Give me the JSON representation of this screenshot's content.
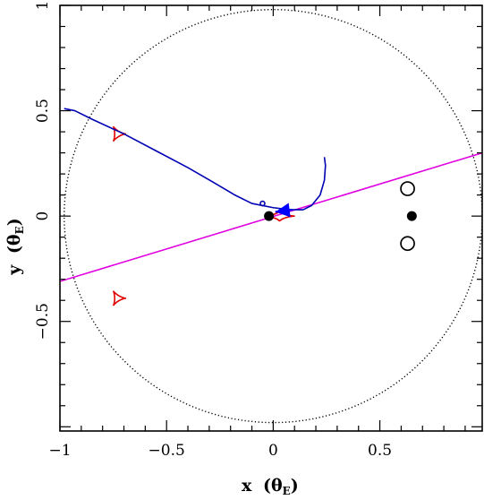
{
  "chart_data": {
    "type": "scatter",
    "title": "",
    "xlabel": "x",
    "ylabel": "y",
    "axis_unit_symbol": "θ",
    "axis_unit_subscript": "E",
    "xlim": [
      -1.0,
      0.98
    ],
    "ylim": [
      -1.02,
      1.0
    ],
    "x_ticks": [
      {
        "value": -1.0,
        "label": "−1"
      },
      {
        "value": -0.5,
        "label": "−0.5"
      },
      {
        "value": 0.0,
        "label": "0"
      },
      {
        "value": 0.5,
        "label": "0.5"
      }
    ],
    "y_ticks": [
      {
        "value": 1.0,
        "label": "1"
      },
      {
        "value": 0.5,
        "label": "0.5"
      },
      {
        "value": 0.0,
        "label": "0"
      },
      {
        "value": -0.5,
        "label": "−0.5"
      }
    ],
    "grid": false,
    "einstein_ring": {
      "cx": 0.0,
      "cy": 0.0,
      "r": 0.98,
      "style": "dotted",
      "color": "#000000"
    },
    "source_trajectory": {
      "color": "#0000b4",
      "points": [
        [
          -0.98,
          0.51
        ],
        [
          -0.93,
          0.5
        ],
        [
          -0.85,
          0.46
        ],
        [
          -0.7,
          0.39
        ],
        [
          -0.55,
          0.31
        ],
        [
          -0.4,
          0.23
        ],
        [
          -0.28,
          0.16
        ],
        [
          -0.18,
          0.1
        ],
        [
          -0.1,
          0.06
        ],
        [
          0.0,
          0.04
        ],
        [
          0.08,
          0.03
        ],
        [
          0.14,
          0.03
        ],
        [
          0.18,
          0.05
        ],
        [
          0.22,
          0.1
        ],
        [
          0.24,
          0.17
        ],
        [
          0.245,
          0.24
        ],
        [
          0.24,
          0.28
        ]
      ],
      "marker": [
        -0.05,
        0.06
      ]
    },
    "lens_axis": {
      "color": "#e000e0",
      "x1": -1.0,
      "y1": -0.31,
      "x2": 0.98,
      "y2": 0.3
    },
    "arrow": {
      "color": "#0000ff",
      "tip": [
        0.01,
        0.02
      ],
      "tail": [
        0.09,
        0.03
      ]
    },
    "caustics": [
      {
        "name": "central",
        "cx": 0.03,
        "cy": 0.0,
        "size": 0.055
      },
      {
        "name": "upper-planetary",
        "cx": -0.73,
        "cy": 0.39,
        "size": 0.04
      },
      {
        "name": "lower-planetary",
        "cx": -0.73,
        "cy": -0.39,
        "size": 0.04
      }
    ],
    "caustic_color": "#e00000",
    "lens_masses": [
      [
        -0.02,
        0.0
      ],
      [
        0.65,
        0.0
      ]
    ],
    "images": [
      [
        0.63,
        0.13
      ],
      [
        0.63,
        -0.13
      ]
    ]
  }
}
